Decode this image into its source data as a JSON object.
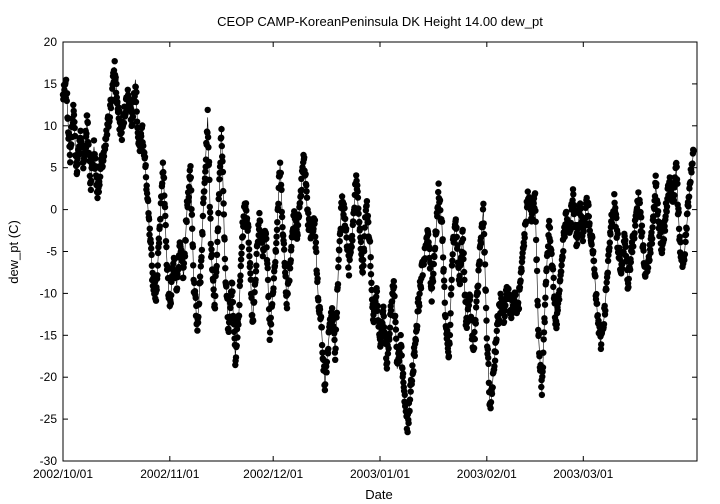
{
  "chart_data": {
    "type": "scatter",
    "title": "CEOP CAMP-KoreanPeninsula DK Height 14.00 dew_pt",
    "xlabel": "Date",
    "ylabel": "dew_pt (C)",
    "ylim": [
      -30,
      20
    ],
    "yticks": [
      -30,
      -25,
      -20,
      -15,
      -10,
      -5,
      0,
      5,
      10,
      15,
      20
    ],
    "xlim": [
      "2002-10-01",
      "2003-04-03"
    ],
    "xticks": [
      "2002/10/01",
      "2002/11/01",
      "2002/12/01",
      "2003/01/01",
      "2003/02/01",
      "2003/03/01"
    ],
    "xtick_dates": [
      "2002-10-01",
      "2002-11-01",
      "2002-12-01",
      "2003-01-01",
      "2003-02-01",
      "2003-03-01"
    ],
    "grid": false,
    "series": [
      {
        "color": "#000000",
        "marker": "circle",
        "connected": true,
        "points": [
          [
            "2002-10-01",
            13.5
          ],
          [
            "2002-10-02",
            14.5
          ],
          [
            "2002-10-03",
            6.0
          ],
          [
            "2002-10-04",
            12.0
          ],
          [
            "2002-10-05",
            4.5
          ],
          [
            "2002-10-06",
            9.0
          ],
          [
            "2002-10-07",
            5.5
          ],
          [
            "2002-10-08",
            11.0
          ],
          [
            "2002-10-09",
            3.0
          ],
          [
            "2002-10-10",
            7.5
          ],
          [
            "2002-10-11",
            2.0
          ],
          [
            "2002-10-12",
            5.0
          ],
          [
            "2002-10-13",
            6.5
          ],
          [
            "2002-10-14",
            10.0
          ],
          [
            "2002-10-15",
            13.0
          ],
          [
            "2002-10-16",
            17.0
          ],
          [
            "2002-10-17",
            11.5
          ],
          [
            "2002-10-18",
            9.0
          ],
          [
            "2002-10-19",
            12.0
          ],
          [
            "2002-10-20",
            14.0
          ],
          [
            "2002-10-21",
            10.5
          ],
          [
            "2002-10-22",
            15.5
          ],
          [
            "2002-10-23",
            7.0
          ],
          [
            "2002-10-24",
            9.5
          ],
          [
            "2002-10-25",
            4.5
          ],
          [
            "2002-10-26",
            -2.0
          ],
          [
            "2002-10-27",
            -8.0
          ],
          [
            "2002-10-28",
            -10.0
          ],
          [
            "2002-10-29",
            -3.0
          ],
          [
            "2002-10-30",
            6.0
          ],
          [
            "2002-10-31",
            -5.0
          ],
          [
            "2002-11-01",
            -12.0
          ],
          [
            "2002-11-02",
            -6.0
          ],
          [
            "2002-11-03",
            -9.0
          ],
          [
            "2002-11-04",
            -4.5
          ],
          [
            "2002-11-05",
            -8.0
          ],
          [
            "2002-11-06",
            0.0
          ],
          [
            "2002-11-07",
            5.0
          ],
          [
            "2002-11-08",
            -9.0
          ],
          [
            "2002-11-09",
            -14.0
          ],
          [
            "2002-11-10",
            -7.0
          ],
          [
            "2002-11-11",
            3.0
          ],
          [
            "2002-11-12",
            11.0
          ],
          [
            "2002-11-13",
            -5.0
          ],
          [
            "2002-11-14",
            -12.0
          ],
          [
            "2002-11-15",
            -2.0
          ],
          [
            "2002-11-16",
            10.0
          ],
          [
            "2002-11-17",
            -6.0
          ],
          [
            "2002-11-18",
            -14.0
          ],
          [
            "2002-11-19",
            -9.0
          ],
          [
            "2002-11-20",
            -17.5
          ],
          [
            "2002-11-21",
            -13.0
          ],
          [
            "2002-11-22",
            -3.0
          ],
          [
            "2002-11-23",
            1.0
          ],
          [
            "2002-11-24",
            -4.0
          ],
          [
            "2002-11-25",
            -13.5
          ],
          [
            "2002-11-26",
            -7.0
          ],
          [
            "2002-11-27",
            -1.0
          ],
          [
            "2002-11-28",
            -5.0
          ],
          [
            "2002-11-29",
            -2.5
          ],
          [
            "2002-11-30",
            -15.0
          ],
          [
            "2002-12-01",
            -9.0
          ],
          [
            "2002-12-02",
            -3.0
          ],
          [
            "2002-12-03",
            5.5
          ],
          [
            "2002-12-04",
            -4.0
          ],
          [
            "2002-12-05",
            -11.0
          ],
          [
            "2002-12-06",
            -6.0
          ],
          [
            "2002-12-07",
            0.0
          ],
          [
            "2002-12-08",
            -3.0
          ],
          [
            "2002-12-09",
            2.0
          ],
          [
            "2002-12-10",
            6.5
          ],
          [
            "2002-12-11",
            -1.0
          ],
          [
            "2002-12-12",
            -3.0
          ],
          [
            "2002-12-13",
            -1.0
          ],
          [
            "2002-12-14",
            -10.0
          ],
          [
            "2002-12-15",
            -14.0
          ],
          [
            "2002-12-16",
            -21.0
          ],
          [
            "2002-12-17",
            -16.0
          ],
          [
            "2002-12-18",
            -12.0
          ],
          [
            "2002-12-19",
            -17.0
          ],
          [
            "2002-12-20",
            -6.0
          ],
          [
            "2002-12-21",
            2.0
          ],
          [
            "2002-12-22",
            -2.0
          ],
          [
            "2002-12-23",
            -7.0
          ],
          [
            "2002-12-24",
            -3.0
          ],
          [
            "2002-12-25",
            4.0
          ],
          [
            "2002-12-26",
            -1.5
          ],
          [
            "2002-12-27",
            -8.0
          ],
          [
            "2002-12-28",
            1.0
          ],
          [
            "2002-12-29",
            -4.0
          ],
          [
            "2002-12-30",
            -13.0
          ],
          [
            "2002-12-31",
            -10.0
          ],
          [
            "2003-01-01",
            -16.0
          ],
          [
            "2003-01-02",
            -12.0
          ],
          [
            "2003-01-03",
            -18.0
          ],
          [
            "2003-01-04",
            -13.0
          ],
          [
            "2003-01-05",
            -9.0
          ],
          [
            "2003-01-06",
            -19.0
          ],
          [
            "2003-01-07",
            -16.0
          ],
          [
            "2003-01-08",
            -22.0
          ],
          [
            "2003-01-09",
            -26.0
          ],
          [
            "2003-01-10",
            -21.0
          ],
          [
            "2003-01-11",
            -17.0
          ],
          [
            "2003-01-12",
            -12.0
          ],
          [
            "2003-01-13",
            -8.0
          ],
          [
            "2003-01-14",
            -5.0
          ],
          [
            "2003-01-15",
            -3.0
          ],
          [
            "2003-01-16",
            -10.0
          ],
          [
            "2003-01-17",
            -4.0
          ],
          [
            "2003-01-18",
            2.0
          ],
          [
            "2003-01-19",
            -2.0
          ],
          [
            "2003-01-20",
            -13.0
          ],
          [
            "2003-01-21",
            -18.0
          ],
          [
            "2003-01-22",
            -5.0
          ],
          [
            "2003-01-23",
            -1.0
          ],
          [
            "2003-01-24",
            -9.0
          ],
          [
            "2003-01-25",
            -3.0
          ],
          [
            "2003-01-26",
            -14.0
          ],
          [
            "2003-01-27",
            -10.0
          ],
          [
            "2003-01-28",
            -17.0
          ],
          [
            "2003-01-29",
            -12.0
          ],
          [
            "2003-01-30",
            -5.0
          ],
          [
            "2003-01-31",
            0.0
          ],
          [
            "2003-02-01",
            -15.0
          ],
          [
            "2003-02-02",
            -24.0
          ],
          [
            "2003-02-03",
            -19.0
          ],
          [
            "2003-02-04",
            -14.0
          ],
          [
            "2003-02-05",
            -11.0
          ],
          [
            "2003-02-06",
            -13.0
          ],
          [
            "2003-02-07",
            -9.0
          ],
          [
            "2003-02-08",
            -12.0
          ],
          [
            "2003-02-09",
            -10.5
          ],
          [
            "2003-02-10",
            -12.0
          ],
          [
            "2003-02-11",
            -8.0
          ],
          [
            "2003-02-12",
            -3.0
          ],
          [
            "2003-02-13",
            2.0
          ],
          [
            "2003-02-14",
            -1.0
          ],
          [
            "2003-02-15",
            1.5
          ],
          [
            "2003-02-16",
            -15.0
          ],
          [
            "2003-02-17",
            -22.0
          ],
          [
            "2003-02-18",
            -10.0
          ],
          [
            "2003-02-19",
            -2.0
          ],
          [
            "2003-02-20",
            -6.0
          ],
          [
            "2003-02-21",
            -14.0
          ],
          [
            "2003-02-22",
            -10.0
          ],
          [
            "2003-02-23",
            -5.0
          ],
          [
            "2003-02-24",
            -1.0
          ],
          [
            "2003-02-25",
            -3.0
          ],
          [
            "2003-02-26",
            2.0
          ],
          [
            "2003-02-27",
            -4.0
          ],
          [
            "2003-02-28",
            0.0
          ],
          [
            "2003-03-01",
            -3.0
          ],
          [
            "2003-03-02",
            1.0
          ],
          [
            "2003-03-03",
            -2.0
          ],
          [
            "2003-03-04",
            -6.0
          ],
          [
            "2003-03-05",
            -12.0
          ],
          [
            "2003-03-06",
            -16.0
          ],
          [
            "2003-03-07",
            -13.0
          ],
          [
            "2003-03-08",
            -8.0
          ],
          [
            "2003-03-09",
            -2.0
          ],
          [
            "2003-03-10",
            1.0
          ],
          [
            "2003-03-11",
            -4.0
          ],
          [
            "2003-03-12",
            -7.0
          ],
          [
            "2003-03-13",
            -3.0
          ],
          [
            "2003-03-14",
            -9.0
          ],
          [
            "2003-03-15",
            -5.0
          ],
          [
            "2003-03-16",
            -2.0
          ],
          [
            "2003-03-17",
            2.0
          ],
          [
            "2003-03-18",
            -3.0
          ],
          [
            "2003-03-19",
            -8.0
          ],
          [
            "2003-03-20",
            -6.0
          ],
          [
            "2003-03-21",
            -3.0
          ],
          [
            "2003-03-22",
            3.0
          ],
          [
            "2003-03-23",
            -2.0
          ],
          [
            "2003-03-24",
            -5.0
          ],
          [
            "2003-03-25",
            0.0
          ],
          [
            "2003-03-26",
            4.0
          ],
          [
            "2003-03-27",
            1.0
          ],
          [
            "2003-03-28",
            5.0
          ],
          [
            "2003-03-29",
            -4.0
          ],
          [
            "2003-03-30",
            -7.0
          ],
          [
            "2003-03-31",
            -2.0
          ],
          [
            "2003-04-01",
            3.0
          ],
          [
            "2003-04-02",
            7.0
          ]
        ]
      }
    ]
  }
}
